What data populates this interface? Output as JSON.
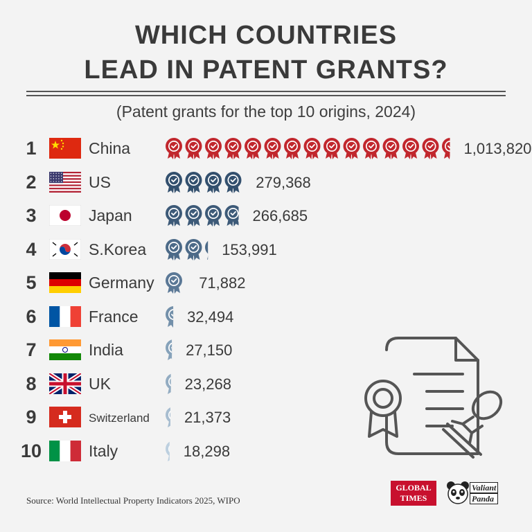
{
  "title": {
    "line1": "WHICH COUNTRIES",
    "line2": "LEAD IN PATENT GRANTS?"
  },
  "subtitle": "(Patent grants for the top 10 origins, 2024)",
  "chart_data": {
    "type": "bar",
    "title": "WHICH COUNTRIES LEAD IN PATENT GRANTS?",
    "subtitle": "(Patent grants for the top 10 origins, 2024)",
    "categories": [
      "China",
      "US",
      "Japan",
      "S.Korea",
      "Germany",
      "France",
      "India",
      "UK",
      "Switzerland",
      "Italy"
    ],
    "values": [
      1013820,
      279368,
      266685,
      153991,
      71882,
      32494,
      27150,
      23268,
      21373,
      18298
    ],
    "unit_per_icon": 70000,
    "xlabel": "",
    "ylabel": "",
    "grid": false,
    "legend": "none"
  },
  "rows": [
    {
      "rank": "1",
      "country": "China",
      "value_label": "1,013,820",
      "value": 1013820,
      "flag": "cn",
      "color": "#c1272d"
    },
    {
      "rank": "2",
      "country": "US",
      "value_label": "279,368",
      "value": 279368,
      "flag": "us",
      "color": "#33506e"
    },
    {
      "rank": "3",
      "country": "Japan",
      "value_label": "266,685",
      "value": 266685,
      "flag": "jp",
      "color": "#3d5a78"
    },
    {
      "rank": "4",
      "country": "S.Korea",
      "value_label": "153,991",
      "value": 153991,
      "flag": "kr",
      "color": "#4c6a88"
    },
    {
      "rank": "5",
      "country": "Germany",
      "value_label": "71,882",
      "value": 71882,
      "flag": "de",
      "color": "#5b7896"
    },
    {
      "rank": "6",
      "country": "France",
      "value_label": "32,494",
      "value": 32494,
      "flag": "fr",
      "color": "#7390aa"
    },
    {
      "rank": "7",
      "country": "India",
      "value_label": "27,150",
      "value": 27150,
      "flag": "in",
      "color": "#86a2ba"
    },
    {
      "rank": "8",
      "country": "UK",
      "value_label": "23,268",
      "value": 23268,
      "flag": "gb",
      "color": "#93acc2"
    },
    {
      "rank": "9",
      "country": "Switzerland",
      "value_label": "21,373",
      "value": 21373,
      "flag": "ch",
      "color": "#a7bdd0"
    },
    {
      "rank": "10",
      "country": "Italy",
      "value_label": "18,298",
      "value": 18298,
      "flag": "it",
      "color": "#bccfdf"
    }
  ],
  "icons": {
    "row_icon": "award-ribbon-icon",
    "illustration": "patent-certificate-stamp-icon"
  },
  "source": "Source: World Intellectual Property Indicators 2025, WIPO",
  "logos": {
    "global_times_line1": "GLOBAL",
    "global_times_line2": "TIMES",
    "valiant_panda_line1": "Valiant",
    "valiant_panda_line2": "Panda"
  }
}
